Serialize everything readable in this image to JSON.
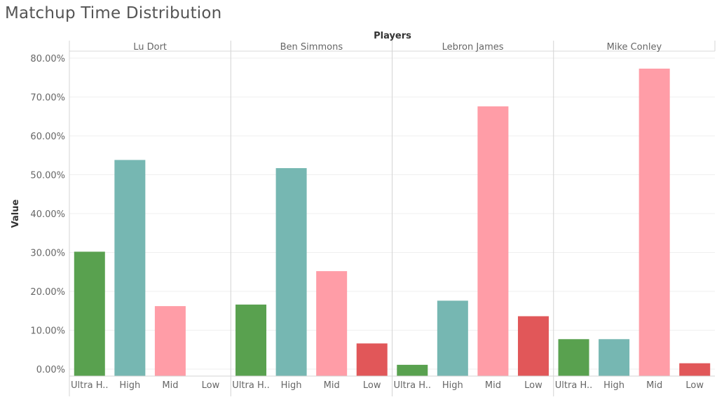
{
  "chart_data": {
    "type": "bar",
    "title": "Matchup Time Distribution",
    "column_header": "Players",
    "ylabel": "Value",
    "ylim": [
      0,
      0.8
    ],
    "yticks": [
      0,
      0.1,
      0.2,
      0.3,
      0.4,
      0.5,
      0.6,
      0.7,
      0.8
    ],
    "ytick_labels": [
      "0.00%",
      "10.00%",
      "20.00%",
      "30.00%",
      "40.00%",
      "50.00%",
      "60.00%",
      "70.00%",
      "80.00%"
    ],
    "categories": [
      "Ultra H..",
      "High",
      "Mid",
      "Low"
    ],
    "colors": [
      "#59a14f",
      "#76b7b2",
      "#ff9da7",
      "#e15759"
    ],
    "panels": [
      {
        "name": "Lu Dort",
        "values": [
          0.302,
          0.538,
          0.162,
          0.0
        ]
      },
      {
        "name": "Ben Simmons",
        "values": [
          0.166,
          0.517,
          0.252,
          0.066
        ]
      },
      {
        "name": "Lebron James",
        "values": [
          0.011,
          0.176,
          0.676,
          0.136
        ]
      },
      {
        "name": "Mike Conley",
        "values": [
          0.077,
          0.077,
          0.773,
          0.015
        ]
      }
    ],
    "grid": true
  }
}
